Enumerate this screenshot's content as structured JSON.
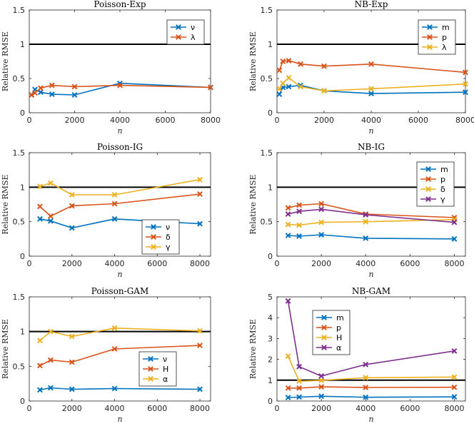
{
  "chart_data": [
    {
      "title": "Poisson-Exp",
      "type": "line",
      "xlabel": "n",
      "ylabel": "Relative RMSE",
      "xlim": [
        0,
        8000
      ],
      "ylim": [
        0,
        1.5
      ],
      "xticks": [
        "0",
        "2000",
        "4000",
        "6000",
        "8000"
      ],
      "yticks": [
        "0",
        "0.5",
        "1",
        "1.5"
      ],
      "reference_line": 1,
      "legend_position": "top-right",
      "series": [
        {
          "name": "ν",
          "color": "#0072BD",
          "x": [
            100,
            250,
            500,
            1000,
            2000,
            4000,
            8000
          ],
          "y": [
            0.26,
            0.34,
            0.3,
            0.27,
            0.26,
            0.43,
            0.37
          ]
        },
        {
          "name": "λ",
          "color": "#D95319",
          "x": [
            100,
            250,
            500,
            1000,
            2000,
            4000,
            8000
          ],
          "y": [
            0.26,
            0.29,
            0.36,
            0.4,
            0.38,
            0.4,
            0.37
          ]
        }
      ]
    },
    {
      "title": "NB-Exp",
      "type": "line",
      "xlabel": "n",
      "ylabel": "Relative RMSE",
      "xlim": [
        0,
        8000
      ],
      "ylim": [
        0,
        1.5
      ],
      "xticks": [
        "0",
        "2000",
        "4000",
        "6000",
        "8000"
      ],
      "yticks": [
        "0",
        "0.5",
        "1",
        "1.5"
      ],
      "reference_line": 1,
      "legend_position": "top-right",
      "series": [
        {
          "name": "m",
          "color": "#0072BD",
          "x": [
            100,
            250,
            500,
            1000,
            2000,
            4000,
            8000
          ],
          "y": [
            0.27,
            0.37,
            0.38,
            0.4,
            0.32,
            0.28,
            0.3
          ]
        },
        {
          "name": "p",
          "color": "#D95319",
          "x": [
            100,
            250,
            500,
            1000,
            2000,
            4000,
            8000
          ],
          "y": [
            0.62,
            0.75,
            0.76,
            0.71,
            0.68,
            0.71,
            0.59
          ]
        },
        {
          "name": "λ",
          "color": "#EDB120",
          "x": [
            100,
            250,
            500,
            1000,
            2000,
            4000,
            8000
          ],
          "y": [
            0.35,
            0.43,
            0.51,
            0.38,
            0.32,
            0.35,
            0.42
          ]
        }
      ]
    },
    {
      "title": "Poisson-IG",
      "type": "line",
      "xlabel": "n",
      "ylabel": "Relative RMSE",
      "xlim": [
        0,
        8500
      ],
      "ylim": [
        0,
        1.5
      ],
      "xticks": [
        "0",
        "2000",
        "4000",
        "6000",
        "8000"
      ],
      "yticks": [
        "0",
        "0.5",
        "1",
        "1.5"
      ],
      "reference_line": 1,
      "legend_position": "bottom-right",
      "series": [
        {
          "name": "ν",
          "color": "#0072BD",
          "x": [
            500,
            1000,
            2000,
            4000,
            8000
          ],
          "y": [
            0.54,
            0.51,
            0.41,
            0.54,
            0.47
          ]
        },
        {
          "name": "δ",
          "color": "#D95319",
          "x": [
            500,
            1000,
            2000,
            4000,
            8000
          ],
          "y": [
            0.72,
            0.58,
            0.73,
            0.76,
            0.9
          ]
        },
        {
          "name": "γ",
          "color": "#EDB120",
          "x": [
            500,
            1000,
            2000,
            4000,
            8000
          ],
          "y": [
            1.01,
            1.06,
            0.89,
            0.89,
            1.11
          ]
        }
      ]
    },
    {
      "title": "NB-IG",
      "type": "line",
      "xlabel": "n",
      "ylabel": "Relative RMSE",
      "xlim": [
        0,
        8500
      ],
      "ylim": [
        0,
        1.5
      ],
      "xticks": [
        "0",
        "2000",
        "4000",
        "6000",
        "8000"
      ],
      "yticks": [
        "0",
        "0.5",
        "1",
        "1.5"
      ],
      "reference_line": 1,
      "legend_position": "top-right",
      "series": [
        {
          "name": "m",
          "color": "#0072BD",
          "x": [
            500,
            1000,
            2000,
            4000,
            8000
          ],
          "y": [
            0.3,
            0.29,
            0.31,
            0.26,
            0.25
          ]
        },
        {
          "name": "p",
          "color": "#D95319",
          "x": [
            500,
            1000,
            2000,
            4000,
            8000
          ],
          "y": [
            0.7,
            0.74,
            0.76,
            0.61,
            0.56
          ]
        },
        {
          "name": "δ",
          "color": "#EDB120",
          "x": [
            500,
            1000,
            2000,
            4000,
            8000
          ],
          "y": [
            0.46,
            0.45,
            0.49,
            0.5,
            0.53
          ]
        },
        {
          "name": "γ",
          "color": "#7E2F8E",
          "x": [
            500,
            1000,
            2000,
            4000,
            8000
          ],
          "y": [
            0.61,
            0.65,
            0.68,
            0.6,
            0.49
          ]
        }
      ]
    },
    {
      "title": "Poisson-GAM",
      "type": "line",
      "xlabel": "n",
      "ylabel": "Relative RMSE",
      "xlim": [
        0,
        8500
      ],
      "ylim": [
        0,
        1.5
      ],
      "xticks": [
        "0",
        "2000",
        "4000",
        "6000",
        "8000"
      ],
      "yticks": [
        "0",
        "0.5",
        "1",
        "1.5"
      ],
      "reference_line": 1,
      "legend_position": "bottom-right",
      "series": [
        {
          "name": "ν",
          "color": "#0072BD",
          "x": [
            500,
            1000,
            2000,
            4000,
            8000
          ],
          "y": [
            0.16,
            0.19,
            0.17,
            0.18,
            0.17
          ]
        },
        {
          "name": "H",
          "color": "#D95319",
          "x": [
            500,
            1000,
            2000,
            4000,
            8000
          ],
          "y": [
            0.51,
            0.59,
            0.56,
            0.75,
            0.8
          ]
        },
        {
          "name": "α",
          "color": "#EDB120",
          "x": [
            500,
            1000,
            2000,
            4000,
            8000
          ],
          "y": [
            0.87,
            1.0,
            0.93,
            1.05,
            1.01
          ]
        }
      ]
    },
    {
      "title": "NB-GAM",
      "type": "line",
      "xlabel": "n",
      "ylabel": "Relative RMSE",
      "xlim": [
        0,
        8500
      ],
      "ylim": [
        0,
        5
      ],
      "xticks": [
        "0",
        "2000",
        "4000",
        "6000",
        "8000"
      ],
      "yticks": [
        "0",
        "1",
        "2",
        "3",
        "4",
        "5"
      ],
      "reference_line": 1,
      "legend_position": "top-left",
      "series": [
        {
          "name": "m",
          "color": "#0072BD",
          "x": [
            500,
            1000,
            2000,
            4000,
            8000
          ],
          "y": [
            0.17,
            0.19,
            0.23,
            0.18,
            0.2
          ]
        },
        {
          "name": "p",
          "color": "#D95319",
          "x": [
            500,
            1000,
            2000,
            4000,
            8000
          ],
          "y": [
            0.62,
            0.62,
            0.68,
            0.65,
            0.66
          ]
        },
        {
          "name": "H",
          "color": "#EDB120",
          "x": [
            500,
            1000,
            2000,
            4000,
            8000
          ],
          "y": [
            2.15,
            0.95,
            0.99,
            1.12,
            1.15
          ]
        },
        {
          "name": "α",
          "color": "#7E2F8E",
          "x": [
            500,
            1000,
            2000,
            4000,
            8000
          ],
          "y": [
            4.8,
            1.65,
            1.2,
            1.75,
            2.4
          ]
        }
      ]
    }
  ]
}
